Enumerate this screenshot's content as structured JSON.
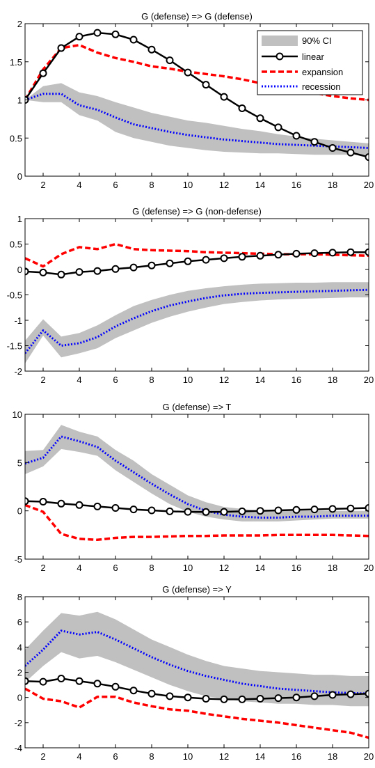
{
  "legend": {
    "items": [
      {
        "label": "90% CI",
        "kind": "ci",
        "color": "#c0c0c0"
      },
      {
        "label": "linear",
        "kind": "linear",
        "color": "#000000"
      },
      {
        "label": "expansion",
        "kind": "expansion",
        "color": "#ff0000"
      },
      {
        "label": "recession",
        "kind": "recession",
        "color": "#0000ff"
      }
    ]
  },
  "chart_data": [
    {
      "type": "line",
      "title": "G (defense) => G (defense)",
      "xlim": [
        1,
        20
      ],
      "ylim": [
        0,
        2
      ],
      "xticks": [
        2,
        4,
        6,
        8,
        10,
        12,
        14,
        16,
        18,
        20
      ],
      "xtick_labels": [
        "2",
        "4",
        "6",
        "8",
        "10",
        "12",
        "14",
        "16",
        "18",
        "20"
      ],
      "yticks": [
        0,
        0.5,
        1,
        1.5,
        2
      ],
      "ytick_labels": [
        "0",
        "0.5",
        "1",
        "1.5",
        "2"
      ],
      "x": [
        1,
        2,
        3,
        4,
        5,
        6,
        7,
        8,
        9,
        10,
        11,
        12,
        13,
        14,
        15,
        16,
        17,
        18,
        19,
        20
      ],
      "ci_lower": [
        1.0,
        0.97,
        0.97,
        0.8,
        0.73,
        0.58,
        0.5,
        0.45,
        0.4,
        0.37,
        0.34,
        0.32,
        0.31,
        0.3,
        0.3,
        0.29,
        0.28,
        0.28,
        0.28,
        0.28
      ],
      "ci_upper": [
        1.0,
        1.18,
        1.22,
        1.1,
        1.05,
        0.97,
        0.9,
        0.83,
        0.78,
        0.73,
        0.7,
        0.66,
        0.62,
        0.59,
        0.55,
        0.52,
        0.49,
        0.47,
        0.45,
        0.43
      ],
      "series": [
        {
          "name": "linear",
          "values": [
            1.0,
            1.35,
            1.68,
            1.83,
            1.88,
            1.86,
            1.79,
            1.66,
            1.52,
            1.36,
            1.2,
            1.04,
            0.89,
            0.76,
            0.64,
            0.53,
            0.45,
            0.37,
            0.31,
            0.25
          ]
        },
        {
          "name": "expansion",
          "values": [
            1.0,
            1.4,
            1.68,
            1.72,
            1.62,
            1.55,
            1.5,
            1.44,
            1.41,
            1.37,
            1.34,
            1.31,
            1.27,
            1.22,
            1.18,
            1.13,
            1.09,
            1.05,
            1.02,
            1.0
          ]
        },
        {
          "name": "recession",
          "values": [
            1.0,
            1.08,
            1.08,
            0.93,
            0.87,
            0.77,
            0.68,
            0.63,
            0.58,
            0.54,
            0.51,
            0.48,
            0.46,
            0.44,
            0.42,
            0.41,
            0.4,
            0.39,
            0.38,
            0.37
          ]
        }
      ]
    },
    {
      "type": "line",
      "title": "G (defense) => G (non-defense)",
      "xlim": [
        1,
        20
      ],
      "ylim": [
        -2,
        1
      ],
      "xticks": [
        2,
        4,
        6,
        8,
        10,
        12,
        14,
        16,
        18,
        20
      ],
      "xtick_labels": [
        "2",
        "4",
        "6",
        "8",
        "10",
        "12",
        "14",
        "16",
        "18",
        "20"
      ],
      "yticks": [
        -2,
        -1.5,
        -1,
        -0.5,
        0,
        0.5,
        1
      ],
      "ytick_labels": [
        "-2",
        "-1.5",
        "-1",
        "-0.5",
        "0",
        "0.5",
        "1"
      ],
      "x": [
        1,
        2,
        3,
        4,
        5,
        6,
        7,
        8,
        9,
        10,
        11,
        12,
        13,
        14,
        15,
        16,
        17,
        18,
        19,
        20
      ],
      "ci_lower": [
        -1.85,
        -1.3,
        -1.73,
        -1.65,
        -1.55,
        -1.35,
        -1.2,
        -1.05,
        -0.93,
        -0.83,
        -0.75,
        -0.68,
        -0.64,
        -0.61,
        -0.59,
        -0.58,
        -0.57,
        -0.56,
        -0.55,
        -0.55
      ],
      "ci_upper": [
        -1.4,
        -0.98,
        -1.32,
        -1.25,
        -1.1,
        -0.9,
        -0.72,
        -0.6,
        -0.5,
        -0.42,
        -0.37,
        -0.33,
        -0.3,
        -0.28,
        -0.27,
        -0.26,
        -0.26,
        -0.25,
        -0.25,
        -0.25
      ],
      "series": [
        {
          "name": "linear",
          "values": [
            -0.04,
            -0.06,
            -0.1,
            -0.05,
            -0.03,
            0.01,
            0.04,
            0.08,
            0.12,
            0.16,
            0.19,
            0.22,
            0.25,
            0.27,
            0.29,
            0.31,
            0.32,
            0.33,
            0.34,
            0.34
          ]
        },
        {
          "name": "expansion",
          "values": [
            0.22,
            0.06,
            0.3,
            0.44,
            0.4,
            0.5,
            0.4,
            0.38,
            0.37,
            0.36,
            0.34,
            0.33,
            0.32,
            0.31,
            0.3,
            0.3,
            0.3,
            0.29,
            0.28,
            0.27
          ]
        },
        {
          "name": "recession",
          "values": [
            -1.65,
            -1.2,
            -1.5,
            -1.45,
            -1.33,
            -1.12,
            -0.96,
            -0.82,
            -0.71,
            -0.63,
            -0.56,
            -0.51,
            -0.48,
            -0.46,
            -0.45,
            -0.44,
            -0.43,
            -0.42,
            -0.41,
            -0.4
          ]
        }
      ]
    },
    {
      "type": "line",
      "title": "G (defense) => T",
      "xlim": [
        1,
        20
      ],
      "ylim": [
        -5,
        10
      ],
      "xticks": [
        2,
        4,
        6,
        8,
        10,
        12,
        14,
        16,
        18,
        20
      ],
      "xtick_labels": [
        "2",
        "4",
        "6",
        "8",
        "10",
        "12",
        "14",
        "16",
        "18",
        "20"
      ],
      "yticks": [
        -5,
        0,
        5,
        10
      ],
      "ytick_labels": [
        "-5",
        "0",
        "5",
        "10"
      ],
      "x": [
        1,
        2,
        3,
        4,
        5,
        6,
        7,
        8,
        9,
        10,
        11,
        12,
        13,
        14,
        15,
        16,
        17,
        18,
        19,
        20
      ],
      "ci_lower": [
        3.8,
        4.6,
        6.4,
        6.1,
        5.7,
        4.2,
        3.0,
        1.8,
        0.7,
        -0.1,
        -0.6,
        -0.9,
        -1.1,
        -1.1,
        -1.1,
        -1.0,
        -0.9,
        -0.8,
        -0.8,
        -0.8
      ],
      "ci_upper": [
        6.2,
        6.3,
        8.9,
        8.2,
        7.7,
        6.3,
        5.2,
        3.8,
        2.7,
        1.6,
        0.9,
        0.4,
        0.2,
        0.0,
        0.0,
        0.0,
        0.0,
        0.0,
        0.0,
        0.0
      ],
      "series": [
        {
          "name": "linear",
          "values": [
            1.0,
            0.95,
            0.75,
            0.6,
            0.45,
            0.3,
            0.15,
            0.05,
            -0.05,
            -0.1,
            -0.12,
            -0.1,
            -0.05,
            0.0,
            0.05,
            0.1,
            0.15,
            0.2,
            0.25,
            0.3
          ]
        },
        {
          "name": "expansion",
          "values": [
            0.6,
            -0.1,
            -2.4,
            -2.9,
            -3.0,
            -2.8,
            -2.7,
            -2.7,
            -2.65,
            -2.6,
            -2.6,
            -2.55,
            -2.55,
            -2.55,
            -2.5,
            -2.5,
            -2.5,
            -2.5,
            -2.55,
            -2.6
          ]
        },
        {
          "name": "recession",
          "values": [
            4.9,
            5.5,
            7.7,
            7.2,
            6.6,
            5.2,
            4.0,
            2.8,
            1.7,
            0.7,
            0.0,
            -0.4,
            -0.6,
            -0.7,
            -0.7,
            -0.6,
            -0.6,
            -0.5,
            -0.5,
            -0.5
          ]
        }
      ]
    },
    {
      "type": "line",
      "title": "G (defense) => Y",
      "xlim": [
        1,
        20
      ],
      "ylim": [
        -4,
        8
      ],
      "xticks": [
        2,
        4,
        6,
        8,
        10,
        12,
        14,
        16,
        18,
        20
      ],
      "xtick_labels": [
        "2",
        "4",
        "6",
        "8",
        "10",
        "12",
        "14",
        "16",
        "18",
        "20"
      ],
      "yticks": [
        -4,
        -2,
        0,
        2,
        4,
        6,
        8
      ],
      "ytick_labels": [
        "-4",
        "-2",
        "0",
        "2",
        "4",
        "6",
        "8"
      ],
      "x": [
        1,
        2,
        3,
        4,
        5,
        6,
        7,
        8,
        9,
        10,
        11,
        12,
        13,
        14,
        15,
        16,
        17,
        18,
        19,
        20
      ],
      "ci_lower": [
        1.2,
        2.5,
        3.6,
        3.1,
        3.3,
        2.8,
        2.2,
        1.6,
        1.0,
        0.5,
        0.1,
        -0.1,
        -0.3,
        -0.4,
        -0.5,
        -0.5,
        -0.6,
        -0.6,
        -0.7,
        -0.7
      ],
      "ci_upper": [
        3.8,
        5.3,
        6.7,
        6.5,
        6.8,
        6.2,
        5.4,
        4.6,
        4.0,
        3.4,
        2.9,
        2.5,
        2.3,
        2.1,
        2.0,
        1.9,
        1.8,
        1.8,
        1.7,
        1.7
      ],
      "series": [
        {
          "name": "linear",
          "values": [
            1.3,
            1.25,
            1.5,
            1.3,
            1.1,
            0.85,
            0.55,
            0.3,
            0.1,
            0.0,
            -0.1,
            -0.15,
            -0.15,
            -0.1,
            -0.05,
            0.0,
            0.1,
            0.2,
            0.25,
            0.3
          ]
        },
        {
          "name": "expansion",
          "values": [
            0.7,
            -0.1,
            -0.3,
            -0.8,
            0.05,
            0.05,
            -0.4,
            -0.7,
            -0.95,
            -1.05,
            -1.3,
            -1.5,
            -1.7,
            -1.85,
            -2.0,
            -2.2,
            -2.4,
            -2.6,
            -2.8,
            -3.2
          ]
        },
        {
          "name": "recession",
          "values": [
            2.5,
            3.8,
            5.3,
            5.0,
            5.2,
            4.6,
            3.9,
            3.2,
            2.6,
            2.1,
            1.7,
            1.4,
            1.1,
            0.9,
            0.7,
            0.6,
            0.5,
            0.4,
            0.35,
            0.3
          ]
        }
      ]
    }
  ]
}
